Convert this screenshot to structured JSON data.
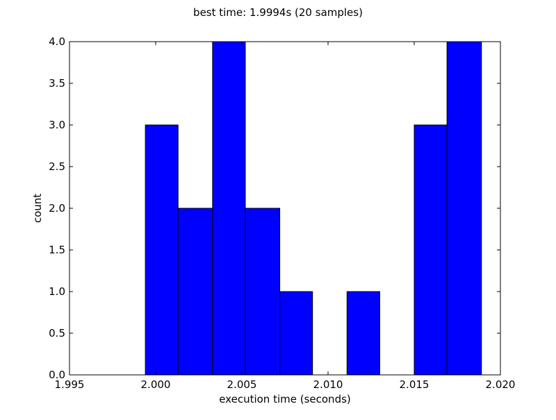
{
  "chart_data": {
    "type": "bar",
    "title": "best time: 1.9994s (20 samples)",
    "xlabel": "execution time (seconds)",
    "ylabel": "count",
    "xlim": [
      1.995,
      2.02
    ],
    "ylim": [
      0,
      4.0
    ],
    "xticks": [
      "1.995",
      "2.000",
      "2.005",
      "2.010",
      "2.015",
      "2.020"
    ],
    "yticks": [
      "0.0",
      "0.5",
      "1.0",
      "1.5",
      "2.0",
      "2.5",
      "3.0",
      "3.5",
      "4.0"
    ],
    "bins": [
      {
        "x0": 1.9994,
        "x1": 2.0013,
        "count": 3
      },
      {
        "x0": 2.0013,
        "x1": 2.0033,
        "count": 2
      },
      {
        "x0": 2.0033,
        "x1": 2.0052,
        "count": 4
      },
      {
        "x0": 2.0052,
        "x1": 2.0072,
        "count": 2
      },
      {
        "x0": 2.0072,
        "x1": 2.0091,
        "count": 1
      },
      {
        "x0": 2.0091,
        "x1": 2.0111,
        "count": 0
      },
      {
        "x0": 2.0111,
        "x1": 2.013,
        "count": 1
      },
      {
        "x0": 2.013,
        "x1": 2.015,
        "count": 0
      },
      {
        "x0": 2.015,
        "x1": 2.0169,
        "count": 3
      },
      {
        "x0": 2.0169,
        "x1": 2.0189,
        "count": 4
      }
    ],
    "bar_color": "#0000ff",
    "grid": false,
    "legend": "none"
  }
}
